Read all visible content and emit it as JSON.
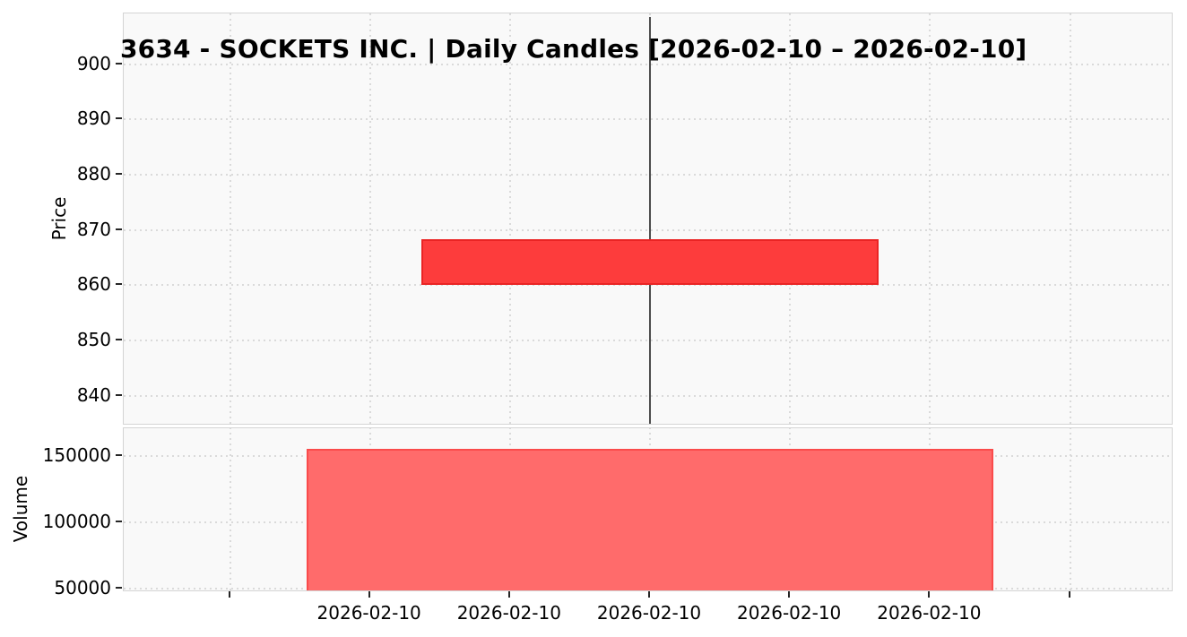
{
  "chart_data": {
    "type": "candlestick",
    "title": "3634 - SOCKETS INC. | Daily Candles [2026-02-10 – 2026-02-10]",
    "price_panel": {
      "ylabel": "Price",
      "yticks": [
        900,
        890,
        880,
        870,
        860,
        850,
        840
      ],
      "ylim": [
        834.6,
        909.2
      ],
      "grid": "dotted"
    },
    "volume_panel": {
      "ylabel": "Volume",
      "yticks": [
        150000,
        100000,
        50000
      ],
      "ylim": [
        47000,
        171300
      ],
      "grid": "dotted"
    },
    "x_axis": {
      "tick_labels": [
        "",
        "2026-02-10",
        "2026-02-10",
        "2026-02-10",
        "2026-02-10",
        "2026-02-10",
        ""
      ]
    },
    "candles": [
      {
        "date": "2026-02-10",
        "open": 868.3,
        "high": 908.6,
        "low": 835.0,
        "close": 860.1,
        "volume": 155600,
        "direction": "down"
      }
    ],
    "legend": "none",
    "colors": {
      "candle_down_fill": "#fd3c3c",
      "candle_down_edge": "#ea2424",
      "wick": "#4d4d4d",
      "volume_fill": "#ff6b6b",
      "volume_edge": "#fa4b4b",
      "grid": "#dadada",
      "panel_bg": "#f9f9f9",
      "text": "#000000"
    }
  }
}
